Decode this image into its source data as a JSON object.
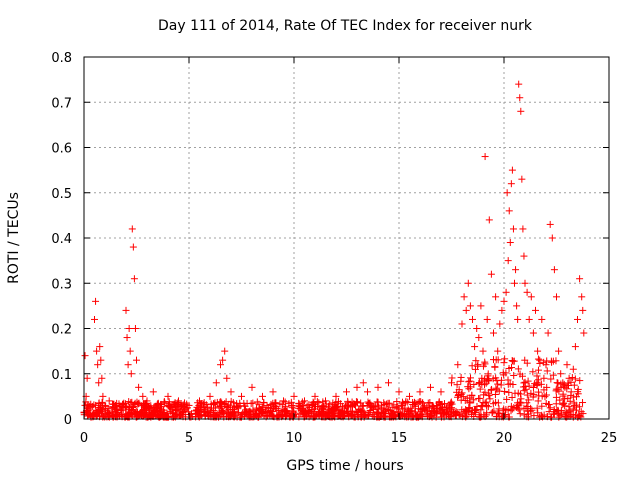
{
  "chart_data": {
    "type": "scatter",
    "title": "Day 111 of 2014, Rate Of TEC Index for receiver nurk",
    "xlabel": "GPS time / hours",
    "ylabel": "ROTI / TECUs",
    "xlim": [
      0,
      25
    ],
    "ylim": [
      0,
      0.8
    ],
    "grid": true,
    "marker": "+",
    "marker_color": "#ff0000",
    "x_ticks": [
      0,
      5,
      10,
      15,
      20,
      25
    ],
    "x_tick_labels": [
      "0",
      "5",
      "10",
      "15",
      "20",
      "25"
    ],
    "y_ticks": [
      0,
      0.1,
      0.2,
      0.3,
      0.4,
      0.5,
      0.6,
      0.7,
      0.8
    ],
    "y_tick_labels": [
      "0",
      "0.1",
      "0.2",
      "0.3",
      "0.4",
      "0.5",
      "0.6",
      "0.7",
      "0.8"
    ],
    "series": [
      {
        "name": "ROTI",
        "x": [
          0.05,
          0.1,
          0.15,
          0.2,
          0.5,
          0.55,
          0.6,
          0.65,
          0.7,
          0.75,
          0.8,
          0.85,
          0.9,
          1.0,
          1.2,
          1.5,
          1.8,
          2.0,
          2.05,
          2.1,
          2.15,
          2.2,
          2.25,
          2.3,
          2.35,
          2.4,
          2.45,
          2.5,
          2.6,
          2.8,
          3.0,
          3.3,
          3.5,
          4.0,
          4.5,
          5.0,
          5.5,
          6.0,
          6.3,
          6.5,
          6.6,
          6.7,
          6.8,
          7.0,
          7.5,
          8.0,
          8.5,
          9.0,
          9.5,
          10.0,
          10.5,
          11.0,
          11.5,
          12.0,
          12.5,
          13.0,
          13.3,
          13.5,
          14.0,
          14.5,
          15.0,
          15.5,
          16.0,
          16.5,
          17.0,
          17.5,
          17.8,
          18.0,
          18.1,
          18.2,
          18.3,
          18.4,
          18.5,
          18.6,
          18.7,
          18.8,
          18.9,
          19.0,
          19.1,
          19.2,
          19.3,
          19.4,
          19.5,
          19.6,
          19.7,
          19.8,
          19.9,
          20.0,
          20.1,
          20.15,
          20.2,
          20.25,
          20.3,
          20.35,
          20.4,
          20.45,
          20.5,
          20.55,
          20.6,
          20.65,
          20.7,
          20.75,
          20.8,
          20.85,
          20.9,
          20.95,
          21.0,
          21.1,
          21.2,
          21.3,
          21.4,
          21.5,
          21.6,
          21.7,
          21.8,
          21.9,
          22.0,
          22.1,
          22.2,
          22.3,
          22.4,
          22.5,
          22.6,
          22.7,
          22.8,
          22.9,
          23.0,
          23.1,
          23.2,
          23.3,
          23.4,
          23.5,
          23.6,
          23.7,
          23.75,
          23.8
        ],
        "y": [
          0.14,
          0.05,
          0.09,
          0.03,
          0.22,
          0.26,
          0.15,
          0.12,
          0.08,
          0.16,
          0.13,
          0.09,
          0.05,
          0.03,
          0.04,
          0.03,
          0.02,
          0.24,
          0.18,
          0.12,
          0.2,
          0.15,
          0.1,
          0.42,
          0.38,
          0.31,
          0.2,
          0.13,
          0.07,
          0.05,
          0.04,
          0.06,
          0.03,
          0.05,
          0.04,
          0.03,
          0.04,
          0.05,
          0.08,
          0.12,
          0.13,
          0.15,
          0.09,
          0.06,
          0.05,
          0.07,
          0.05,
          0.06,
          0.04,
          0.05,
          0.04,
          0.05,
          0.04,
          0.05,
          0.06,
          0.07,
          0.08,
          0.06,
          0.07,
          0.08,
          0.06,
          0.05,
          0.06,
          0.07,
          0.06,
          0.08,
          0.12,
          0.21,
          0.27,
          0.24,
          0.3,
          0.25,
          0.22,
          0.16,
          0.2,
          0.18,
          0.25,
          0.15,
          0.58,
          0.22,
          0.44,
          0.32,
          0.19,
          0.27,
          0.15,
          0.21,
          0.24,
          0.26,
          0.28,
          0.5,
          0.35,
          0.46,
          0.39,
          0.52,
          0.55,
          0.42,
          0.3,
          0.33,
          0.25,
          0.22,
          0.74,
          0.71,
          0.68,
          0.53,
          0.42,
          0.36,
          0.3,
          0.28,
          0.22,
          0.27,
          0.19,
          0.24,
          0.15,
          0.13,
          0.22,
          0.09,
          0.12,
          0.19,
          0.43,
          0.4,
          0.33,
          0.27,
          0.15,
          0.1,
          0.08,
          0.07,
          0.12,
          0.09,
          0.06,
          0.11,
          0.16,
          0.22,
          0.31,
          0.27,
          0.24,
          0.19
        ]
      }
    ]
  }
}
